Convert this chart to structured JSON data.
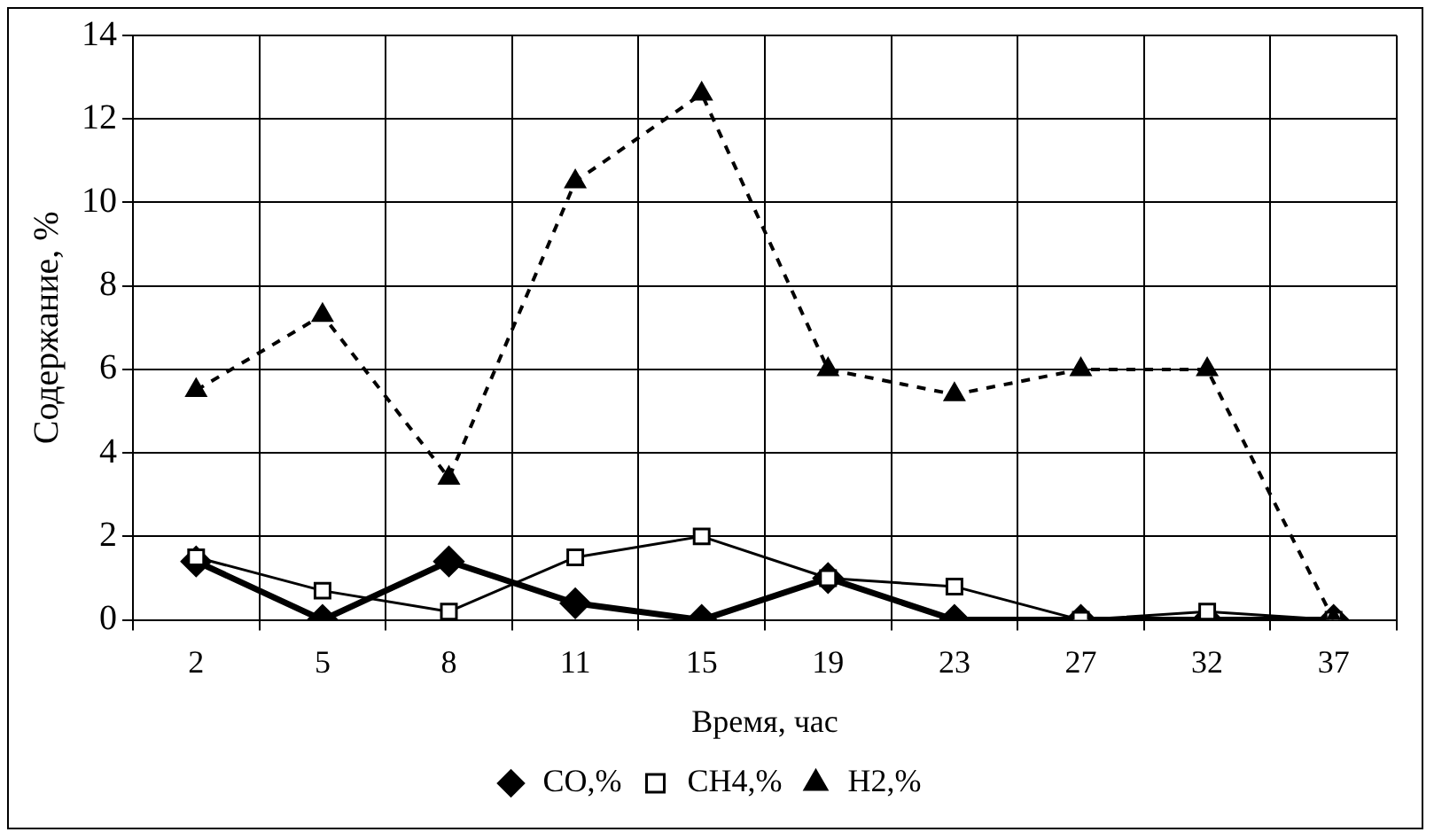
{
  "chart_data": {
    "type": "line",
    "xlabel": "Время, час",
    "ylabel": "Содержание, %",
    "categories": [
      "2",
      "5",
      "8",
      "11",
      "15",
      "19",
      "23",
      "27",
      "32",
      "37"
    ],
    "ylim": [
      0,
      14
    ],
    "yticks": [
      0,
      2,
      4,
      6,
      8,
      10,
      12,
      14
    ],
    "grid": true,
    "legend": "bottom",
    "series": [
      {
        "name": "CO,%",
        "color": "#000000",
        "marker": "diamond",
        "line_style": "solid",
        "values": [
          1.4,
          0,
          1.4,
          0.4,
          0,
          1.0,
          0,
          0,
          0,
          0
        ]
      },
      {
        "name": "CH4,%",
        "color": "#000000",
        "marker": "square",
        "line_style": "solid",
        "values": [
          1.5,
          0.7,
          0.2,
          1.5,
          2.0,
          1.0,
          0.8,
          0,
          0.2,
          0
        ]
      },
      {
        "name": "H2,%",
        "color": "#000000",
        "marker": "triangle",
        "line_style": "dashed",
        "values": [
          5.5,
          7.3,
          3.4,
          10.5,
          12.6,
          6.0,
          5.4,
          6.0,
          6.0,
          0
        ]
      }
    ]
  }
}
